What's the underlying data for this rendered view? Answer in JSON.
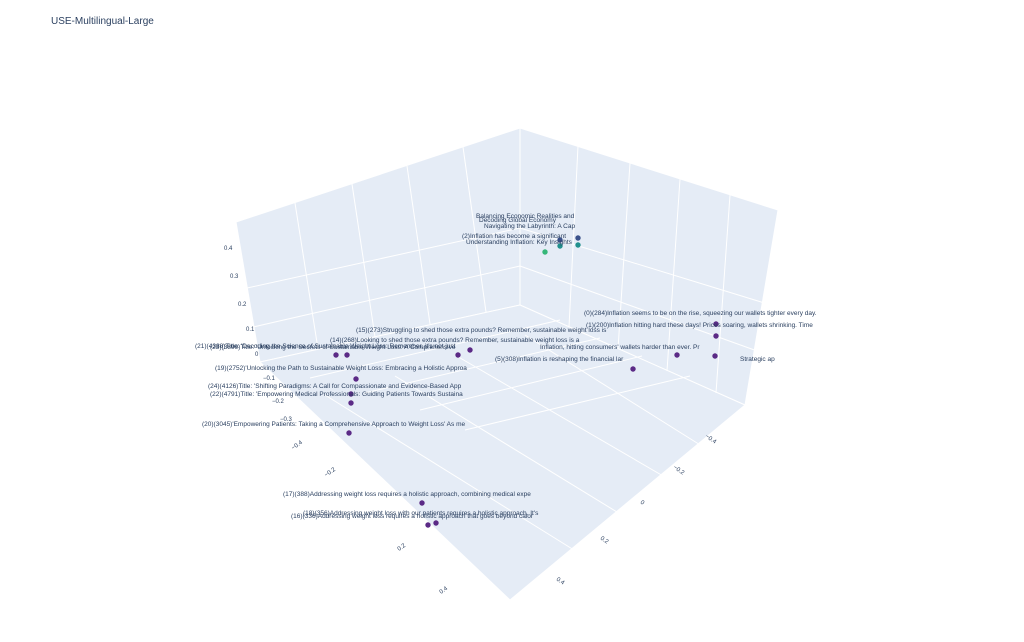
{
  "chart_data": {
    "type": "scatter",
    "title": "USE-Multilingual-Large",
    "z_ticks": [
      "0.4",
      "0.3",
      "0.2",
      "0.1",
      "0",
      "−0.1",
      "−0.2",
      "−0.3"
    ],
    "x_ticks": [
      "−0.4",
      "−0.2",
      "0",
      "0.2",
      "0.4"
    ],
    "y_ticks": [
      "−0.4",
      "−0.2",
      "0",
      "0.2",
      "0.4"
    ],
    "points": [
      {
        "label": "(0)(284)Inflation seems to be on the rise, squeezing our wallets tighter every day.",
        "group": "inflation",
        "color": "#5b2a86"
      },
      {
        "label": "(1)(200)Inflation hitting hard these days! Prices soaring, wallets shrinking. Time",
        "group": "inflation",
        "color": "#5b2a86"
      },
      {
        "label": "(5)(308)Inflation is reshaping the financial lar",
        "group": "inflation",
        "color": "#5b2a86"
      },
      {
        "label": "(15)(273)Struggling to shed those extra pounds? Remember, sustainable weight loss is",
        "group": "weight",
        "color": "#5b2a86"
      },
      {
        "label": "(14)(268)Looking to shed those extra pounds? Remember, sustainable weight loss is a",
        "group": "weight",
        "color": "#5b2a86"
      },
      {
        "label": "(19)(2752)'Unlocking the Path to Sustainable Weight Loss: Embracing a Holistic Approa",
        "group": "weight",
        "color": "#5b2a86"
      },
      {
        "label": "(24)(4126)Title: 'Shifting Paradigms: A Call for Compassionate and Evidence-Based App",
        "group": "weight",
        "color": "#5b2a86"
      },
      {
        "label": "(22)(4791)Title: 'Empowering Medical Professionals: Guiding Patients Towards Sustaina",
        "group": "weight",
        "color": "#5b2a86"
      },
      {
        "label": "(20)(3045)'Empowering Patients: Taking a Comprehensive Approach to Weight Loss' As me",
        "group": "weight",
        "color": "#5b2a86"
      },
      {
        "label": "(17)(388)Addressing weight loss requires a holistic approach, combining medical expe",
        "group": "weight",
        "color": "#5b2a86"
      },
      {
        "label": "(18)(356)Addressing weight loss with our patients requires a holistic approach. It's",
        "group": "weight",
        "color": "#5b2a86"
      },
      {
        "label": "(16)(336)Addressing weight loss requires a holistic approach that goes beyond calor",
        "group": "weight",
        "color": "#5b2a86"
      },
      {
        "label": "(21)(4388)Title: 'Decoding the Science of Sustainable Weight Loss: Remember, it's not just",
        "group": "weight",
        "color": "#5b2a86"
      },
      {
        "label": "(23)(3899)Title: 'Unlocking the Secrets of Sustainable Weight Loss: A Comprehensive",
        "group": "weight",
        "color": "#5b2a86"
      },
      {
        "label": "Balancing Economic Realities and",
        "group": "econ",
        "color": "#21908d"
      },
      {
        "label": "Decoding Global Economy",
        "group": "econ",
        "color": "#21908d"
      },
      {
        "label": "Navigating the Labyrinth: A Cap",
        "group": "econ",
        "color": "#35b779"
      },
      {
        "label": "(2)Inflation has become a significant",
        "group": "econ",
        "color": "#3b528b"
      },
      {
        "label": "Understanding Inflation: Key Insights",
        "group": "econ",
        "color": "#3b528b"
      },
      {
        "label": "Inflation, hitting consumers' wallets harder than ever. Pr",
        "group": "inflation",
        "color": "#5b2a86"
      },
      {
        "label": "Strategic ap",
        "group": "inflation",
        "color": "#5b2a86"
      }
    ]
  }
}
